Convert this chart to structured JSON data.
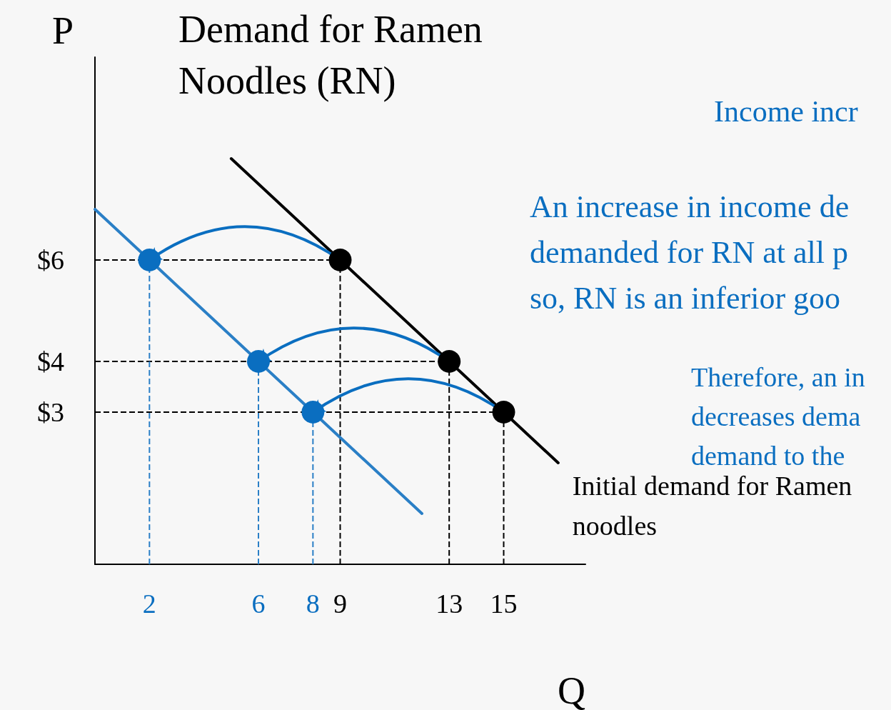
{
  "chart_data": {
    "type": "line",
    "title": "Demand for Ramen Noodles (RN)",
    "xlabel": "Q",
    "ylabel": "P",
    "xlim": [
      0,
      18
    ],
    "ylim": [
      0,
      10
    ],
    "xticks": [
      2,
      6,
      8,
      9,
      13,
      15
    ],
    "yticks": [
      {
        "value": 3,
        "label": "$3"
      },
      {
        "value": 4,
        "label": "$4"
      },
      {
        "value": 6,
        "label": "$6"
      }
    ],
    "grid": false,
    "legend": false,
    "marker": "none",
    "series": [
      {
        "name": "Initial demand for Ramen noodles",
        "color": "#000000",
        "x": [
          5,
          9,
          13,
          15,
          17
        ],
        "values": [
          8,
          6,
          4,
          3,
          2
        ]
      },
      {
        "color": "#2a7fc6",
        "x": [
          0,
          2,
          6,
          8,
          12
        ],
        "values": [
          7,
          6,
          4,
          3,
          1
        ]
      },
      {
        "type": "scatter",
        "marker": "circle",
        "color": "#000000",
        "x": [
          9,
          13,
          15
        ],
        "values": [
          6,
          4,
          3
        ]
      },
      {
        "type": "scatter",
        "marker": "circle",
        "color": "#0a6ec0",
        "x": [
          2,
          6,
          8
        ],
        "values": [
          6,
          4,
          3
        ]
      }
    ],
    "ref_lines": [
      {
        "axis": "y",
        "value": 6,
        "color": "#000000",
        "line_style": "dashed"
      },
      {
        "axis": "y",
        "value": 4,
        "color": "#000000",
        "line_style": "dashed"
      },
      {
        "axis": "y",
        "value": 3,
        "color": "#000000",
        "line_style": "dashed"
      },
      {
        "axis": "x",
        "value": 9,
        "color": "#000000",
        "line_style": "dashed"
      },
      {
        "axis": "x",
        "value": 13,
        "color": "#000000",
        "line_style": "dashed"
      },
      {
        "axis": "x",
        "value": 15,
        "color": "#000000",
        "line_style": "dashed"
      },
      {
        "axis": "x",
        "value": 2,
        "color": "#2a7fc6",
        "line_style": "dashed"
      },
      {
        "axis": "x",
        "value": 6,
        "color": "#2a7fc6",
        "line_style": "dashed"
      },
      {
        "axis": "x",
        "value": 8,
        "color": "#2a7fc6",
        "line_style": "dashed"
      }
    ],
    "annotations": [
      "Income incr",
      "An increase in income de\ndemanded for RN at all p\nso, RN is an inferior goo",
      "Therefore, an in\ndecreases dema\ndemand to the"
    ]
  }
}
